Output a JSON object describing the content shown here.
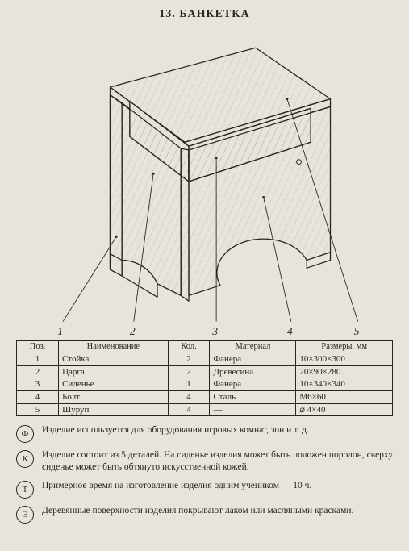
{
  "title": "13. БАНКЕТКА",
  "drawing": {
    "stroke": "#2a2520",
    "hatch_stroke": "#2a2520",
    "hatch_opacity": 0.35,
    "callouts": [
      "1",
      "2",
      "3",
      "4",
      "5"
    ]
  },
  "table": {
    "headers": [
      "Поз.",
      "Наименование",
      "Кол.",
      "Материал",
      "Размеры, мм"
    ],
    "rows": [
      [
        "1",
        "Стойка",
        "2",
        "Фанера",
        "10×300×300"
      ],
      [
        "2",
        "Царга",
        "2",
        "Древесина",
        "20×90×280"
      ],
      [
        "3",
        "Сиденье",
        "1",
        "Фанера",
        "10×340×340"
      ],
      [
        "4",
        "Болт",
        "4",
        "Сталь",
        "М6×60"
      ],
      [
        "5",
        "Шуруп",
        "4",
        "—",
        "⌀ 4×40"
      ]
    ],
    "col_align": [
      "c",
      "l",
      "c",
      "l",
      "l"
    ]
  },
  "notes": [
    {
      "mark": "Ф",
      "text": "Изделие используется для оборудования игровых комнат, зон и т. д."
    },
    {
      "mark": "К",
      "text": "Изделие состоит из 5 деталей. На сиденье изделия может быть положен поролон, сверху сиденье может быть обтянуто искусственной кожей."
    },
    {
      "mark": "Т",
      "text": "Примерное время на изготовление изделия одним учеником — 10 ч."
    },
    {
      "mark": "Э",
      "text": "Деревянные поверхности изделия покрывают лаком или масляными красками."
    }
  ]
}
